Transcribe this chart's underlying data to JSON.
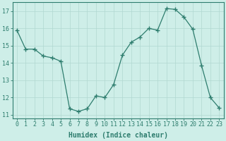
{
  "x": [
    0,
    1,
    2,
    3,
    4,
    5,
    6,
    7,
    8,
    9,
    10,
    11,
    12,
    13,
    14,
    15,
    16,
    17,
    18,
    19,
    20,
    21,
    22,
    23
  ],
  "y": [
    15.9,
    14.8,
    14.8,
    14.4,
    14.3,
    14.1,
    11.35,
    11.2,
    11.35,
    12.1,
    12.0,
    12.75,
    14.45,
    15.2,
    15.5,
    16.0,
    15.9,
    17.15,
    17.1,
    16.65,
    15.95,
    13.85,
    12.0,
    11.4
  ],
  "line_color": "#2e7d6e",
  "marker": "+",
  "marker_size": 4,
  "marker_lw": 1.0,
  "bg_color": "#ceeee8",
  "grid_color": "#b0d8d0",
  "xlabel": "Humidex (Indice chaleur)",
  "ylabel": "",
  "xlim": [
    -0.5,
    23.5
  ],
  "ylim": [
    10.8,
    17.5
  ],
  "yticks": [
    11,
    12,
    13,
    14,
    15,
    16,
    17
  ],
  "xticks": [
    0,
    1,
    2,
    3,
    4,
    5,
    6,
    7,
    8,
    9,
    10,
    11,
    12,
    13,
    14,
    15,
    16,
    17,
    18,
    19,
    20,
    21,
    22,
    23
  ],
  "xtick_labels": [
    "0",
    "1",
    "2",
    "3",
    "4",
    "5",
    "6",
    "7",
    "8",
    "9",
    "10",
    "11",
    "12",
    "13",
    "14",
    "15",
    "16",
    "17",
    "18",
    "19",
    "20",
    "21",
    "22",
    "23"
  ],
  "tick_fontsize": 6,
  "xlabel_fontsize": 7
}
